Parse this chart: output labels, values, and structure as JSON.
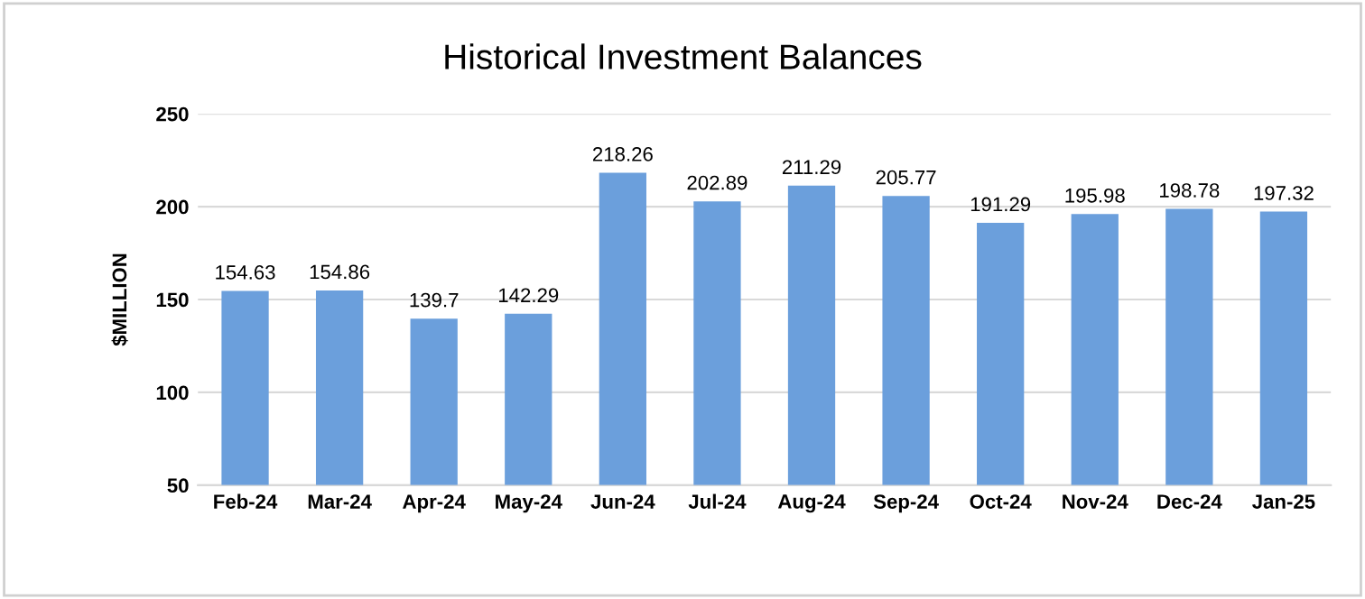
{
  "chart_data": {
    "type": "bar",
    "title": "Historical Investment Balances",
    "ylabel": "$MILLION",
    "categories": [
      "Feb-24",
      "Mar-24",
      "Apr-24",
      "May-24",
      "Jun-24",
      "Jul-24",
      "Aug-24",
      "Sep-24",
      "Oct-24",
      "Nov-24",
      "Dec-24",
      "Jan-25"
    ],
    "values": [
      154.63,
      154.86,
      139.7,
      142.29,
      218.26,
      202.89,
      211.29,
      205.77,
      191.29,
      195.98,
      198.78,
      197.32
    ],
    "color": "#6b9fdc",
    "ylim": [
      50,
      250
    ],
    "yticks": [
      50,
      100,
      150,
      200,
      250
    ],
    "grid": "y",
    "data_labels": true
  }
}
